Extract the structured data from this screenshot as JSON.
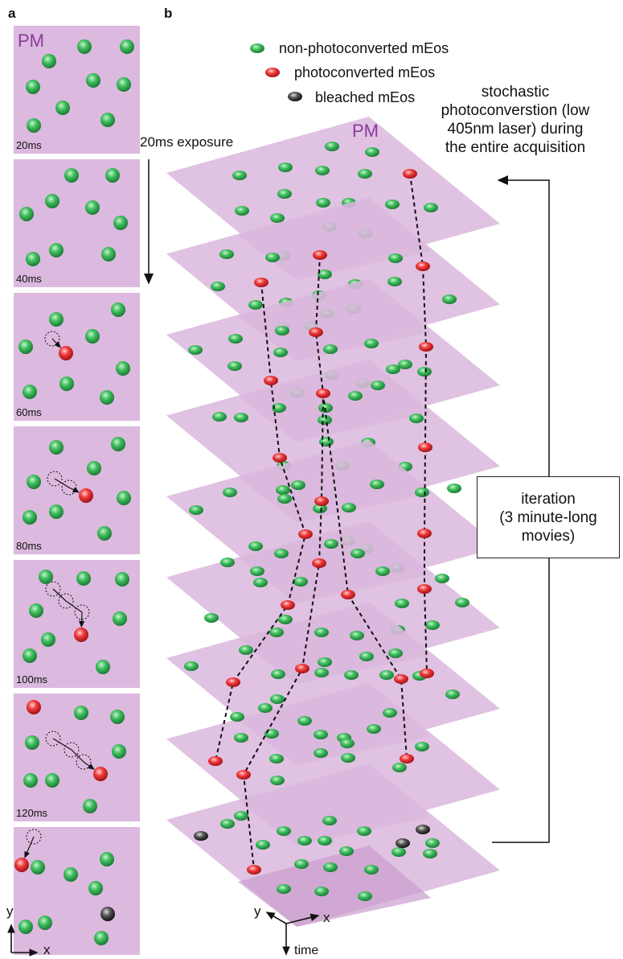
{
  "panel_a": {
    "label": "a",
    "pm_label": "PM",
    "frames": [
      {
        "time": "20ms"
      },
      {
        "time": "40ms"
      },
      {
        "time": "60ms"
      },
      {
        "time": "80ms"
      },
      {
        "time": "100ms"
      },
      {
        "time": "120ms"
      },
      {
        "time": ""
      }
    ],
    "exposure_label": "20ms exposure",
    "axis_x": "x",
    "axis_y": "y"
  },
  "panel_b": {
    "label": "b",
    "pm_label": "PM",
    "legend": [
      {
        "label": "non-photoconverted mEos",
        "color": "#2fa84f"
      },
      {
        "label": "photoconverted mEos",
        "color": "#e8242c"
      },
      {
        "label": "bleached mEos",
        "color": "#333333"
      }
    ],
    "annotation_lines": [
      "stochastic",
      "photoconverstion (low",
      "405nm laser) during",
      "the entire acquisition"
    ],
    "iteration_lines": [
      "iteration",
      "(3 minute-long",
      "movies)"
    ],
    "axis_x": "x",
    "axis_y": "y",
    "axis_time": "time",
    "plane_count": 9
  },
  "colors": {
    "plane": "#dcb9de",
    "plane_dark": "#c99ccd",
    "green": "#2fa84f",
    "red": "#e8242c",
    "black": "#333333",
    "pm_text": "#8a3b9a"
  }
}
